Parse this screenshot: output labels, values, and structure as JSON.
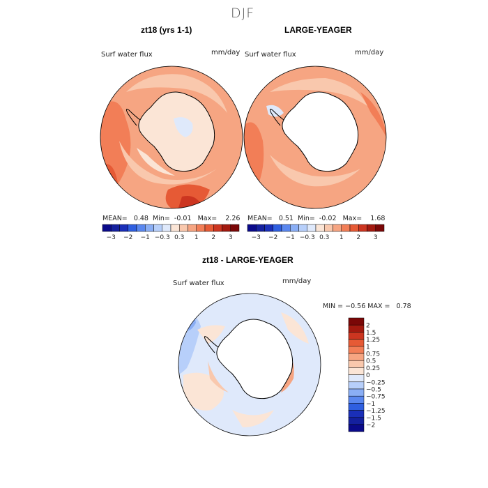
{
  "season": "DJF",
  "colors": {
    "neg": [
      "#0a0a8a",
      "#1a2fb8",
      "#2f5fe0",
      "#5a87ef",
      "#8aaef5",
      "#b7cffa",
      "#dfe9fb"
    ],
    "pos": [
      "#fbe5d6",
      "#f9c8ad",
      "#f6a582",
      "#f27e57",
      "#e65a35",
      "#cc3520",
      "#a3190f",
      "#7a0707"
    ],
    "ocean_base": "#f6a582",
    "land": "#ffffff"
  },
  "chart_data": [
    {
      "type": "contour-map",
      "title": "zt18 (yrs 1-1)",
      "variable": "Surf water flux",
      "units": "mm/day",
      "stats": {
        "mean": "0.48",
        "min": "-0.01",
        "max": "2.26"
      },
      "stats_labels": {
        "mean": "MEAN=",
        "min": "Min=",
        "max": "Max="
      },
      "colorbar_ticks": [
        "−3",
        "−2",
        "−1",
        "−0.3",
        "0.3",
        "1",
        "2",
        "3"
      ]
    },
    {
      "type": "contour-map",
      "title": "LARGE-YEAGER",
      "variable": "Surf water flux",
      "units": "mm/day",
      "stats": {
        "mean": "0.51",
        "min": "-0.02",
        "max": "1.68"
      },
      "stats_labels": {
        "mean": "MEAN=",
        "min": "Min=",
        "max": "Max="
      },
      "colorbar_ticks": [
        "−3",
        "−2",
        "−1",
        "−0.3",
        "0.3",
        "1",
        "2",
        "3"
      ]
    },
    {
      "type": "contour-map",
      "title": "zt18 - LARGE-YEAGER",
      "variable": "Surf water flux",
      "units": "mm/day",
      "stats": {
        "min": "−0.56",
        "max": "0.78"
      },
      "stats_labels": {
        "min": "MIN =",
        "max": "MAX ="
      },
      "colorbar_levels": [
        "2",
        "1.5",
        "1.25",
        "1",
        "0.75",
        "0.5",
        "0.25",
        "0",
        "−0.25",
        "−0.5",
        "−0.75",
        "−1",
        "−1.25",
        "−1.5",
        "−2"
      ]
    }
  ]
}
